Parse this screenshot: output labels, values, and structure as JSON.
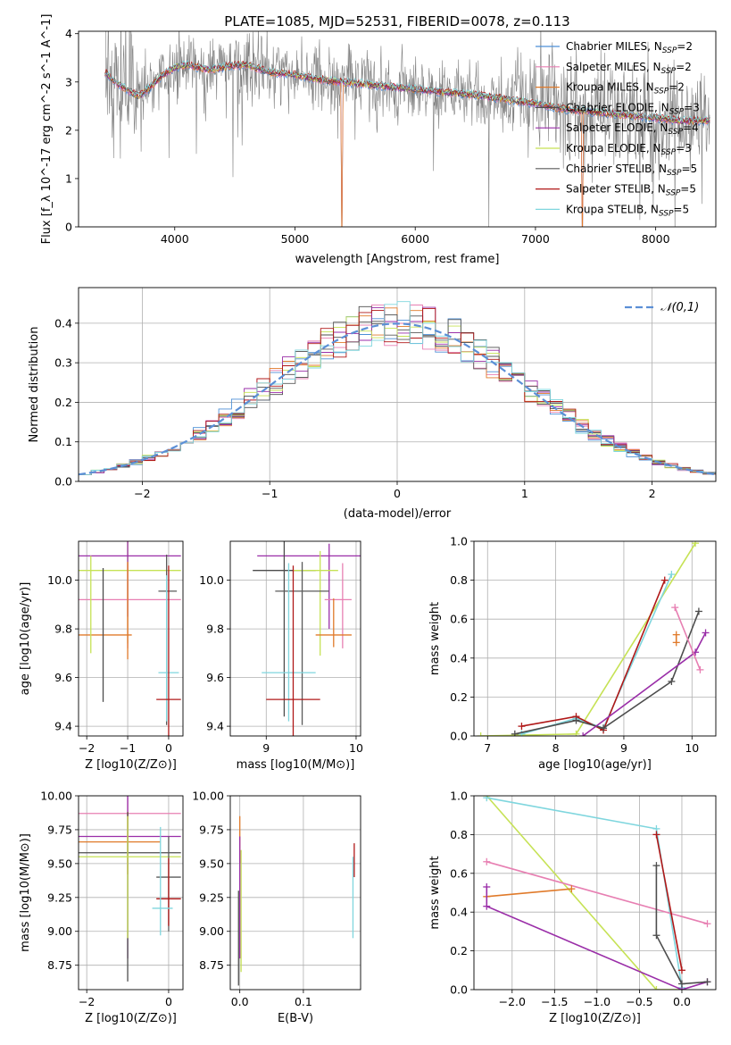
{
  "figure_title": "PLATE=1085, MJD=52531, FIBERID=0078, z=0.113",
  "colors": {
    "Chabrier MILES": "#4c8fd6",
    "Salpeter MILES": "#e77fb2",
    "Kroupa MILES": "#e07a2a",
    "Chabrier ELODIE": "#4d4d4d",
    "Salpeter ELODIE": "#9a2ea8",
    "Kroupa ELODIE": "#c6e255",
    "Chabrier STELIB": "#5a5a5a",
    "Salpeter STELIB": "#b01818",
    "Kroupa STELIB": "#7fd6de",
    "data": "#808080",
    "normal": "#5b8fd6",
    "grid": "#b0b0b0"
  },
  "chart_data": [
    {
      "id": "spectrum",
      "type": "line",
      "title": "PLATE=1085, MJD=52531, FIBERID=0078, z=0.113",
      "xlabel": "wavelength [Angstrom, rest frame]",
      "ylabel": "Flux [f_λ 10^-17 erg cm^-2 s^-1 A^-1]",
      "xlim": [
        3200,
        8500
      ],
      "ylim": [
        0,
        4.05
      ],
      "xticks": [
        4000,
        5000,
        6000,
        7000,
        8000
      ],
      "yticks": [
        0,
        1,
        2,
        3,
        4
      ],
      "grid": false,
      "legend_position": "right",
      "legend": [
        {
          "label": "Chabrier MILES, N",
          "sub": "SSP",
          "val": "=2"
        },
        {
          "label": "Salpeter MILES, N",
          "sub": "SSP",
          "val": "=2"
        },
        {
          "label": "Kroupa MILES, N",
          "sub": "SSP",
          "val": "=2"
        },
        {
          "label": "Chabrier ELODIE, N",
          "sub": "SSP",
          "val": "=3"
        },
        {
          "label": "Salpeter ELODIE, N",
          "sub": "SSP",
          "val": "=4"
        },
        {
          "label": "Kroupa ELODIE, N",
          "sub": "SSP",
          "val": "=3"
        },
        {
          "label": "Chabrier STELIB, N",
          "sub": "SSP",
          "val": "=5"
        },
        {
          "label": "Salpeter STELIB, N",
          "sub": "SSP",
          "val": "=5"
        },
        {
          "label": "Kroupa STELIB, N",
          "sub": "SSP",
          "val": "=5"
        }
      ],
      "model_continuum": {
        "x": [
          3420,
          3500,
          3600,
          3700,
          3800,
          3900,
          4000,
          4100,
          4200,
          4300,
          4400,
          4500,
          4600,
          4800,
          5000,
          5200,
          5400,
          5600,
          5800,
          6000,
          6200,
          6400,
          6600,
          6800,
          7000,
          7200,
          7400,
          7600,
          7800,
          8000,
          8200
        ],
        "y": [
          3.2,
          3.0,
          2.85,
          2.7,
          2.9,
          3.15,
          3.3,
          3.35,
          3.3,
          3.25,
          3.3,
          3.35,
          3.35,
          3.2,
          3.15,
          3.05,
          3.0,
          2.95,
          2.9,
          2.85,
          2.8,
          2.75,
          2.7,
          2.62,
          2.55,
          2.45,
          2.4,
          2.35,
          2.3,
          2.25,
          2.2
        ]
      }
    },
    {
      "id": "residuals",
      "type": "histogram",
      "xlabel": "(data-model)/error",
      "ylabel": "Normed distribution",
      "xlim": [
        -2.5,
        2.5
      ],
      "ylim": [
        0,
        0.49
      ],
      "xticks": [
        -2,
        -1,
        0,
        1,
        2
      ],
      "yticks": [
        0.0,
        0.1,
        0.2,
        0.3,
        0.4
      ],
      "grid": true,
      "legend": [
        {
          "label": "𝒩(0,1)",
          "style": "dashed"
        }
      ],
      "bins": 50,
      "series_names": [
        "Chabrier MILES",
        "Salpeter MILES",
        "Kroupa MILES",
        "Chabrier ELODIE",
        "Salpeter ELODIE",
        "Kroupa ELODIE",
        "Chabrier STELIB",
        "Salpeter STELIB",
        "Kroupa STELIB"
      ]
    },
    {
      "id": "z_age",
      "type": "errorbar",
      "xlabel": "Z [log10(Z/Z⊙)]",
      "ylabel": "age [log10(age/yr)]",
      "xlim": [
        -2.2,
        0.35
      ],
      "ylim": [
        9.36,
        10.16
      ],
      "xticks": [
        -2,
        -1,
        0
      ],
      "yticks": [
        9.4,
        9.6,
        9.8,
        10.0
      ],
      "grid": true,
      "points": [
        {
          "s": "Kroupa ELODIE",
          "x": -1.0,
          "xerr": [
            1.2,
            1.3
          ],
          "y": 10.04,
          "yerr": [
            0.3,
            0.12
          ]
        },
        {
          "s": "Salpeter ELODIE",
          "x": -1.0,
          "xerr": [
            1.2,
            1.3
          ],
          "y": 10.1,
          "yerr": [
            0.25,
            0.1
          ]
        },
        {
          "s": "Salpeter MILES",
          "x": -1.0,
          "xerr": [
            1.2,
            1.3
          ],
          "y": 9.92,
          "yerr": [
            0.2,
            0.15
          ]
        },
        {
          "s": "Kroupa MILES",
          "x": -1.0,
          "xerr": [
            1.2,
            0.1
          ],
          "y": 9.775,
          "yerr": [
            0.1,
            0.3
          ]
        },
        {
          "s": "Chabrier STELIB",
          "x": -0.05,
          "xerr": [
            0.2,
            0.25
          ],
          "y": 9.955,
          "yerr": [
            0.55,
            0.15
          ]
        },
        {
          "s": "Kroupa STELIB",
          "x": -0.05,
          "xerr": [
            0.2,
            0.3
          ],
          "y": 9.62,
          "yerr": [
            0.2,
            0.4
          ]
        },
        {
          "s": "Salpeter STELIB",
          "x": 0.0,
          "xerr": [
            0.3,
            0.3
          ],
          "y": 9.51,
          "yerr": [
            0.15,
            0.55
          ]
        },
        {
          "s": "Kroupa ELODIE",
          "x": -1.9,
          "xerr": [
            0,
            0
          ],
          "y": 9.9,
          "yerr": [
            0.2,
            0.2
          ]
        },
        {
          "s": "Chabrier ELODIE",
          "x": -1.6,
          "xerr": [
            0,
            0
          ],
          "y": 9.8,
          "yerr": [
            0.3,
            0.25
          ]
        }
      ]
    },
    {
      "id": "mass_age",
      "type": "errorbar",
      "xlabel": "mass [log10(M/M⊙)]",
      "ylabel": "",
      "xlim": [
        8.6,
        10.05
      ],
      "ylim": [
        9.36,
        10.16
      ],
      "xticks": [
        9,
        10
      ],
      "yticks": [
        9.4,
        9.6,
        9.8,
        10.0
      ],
      "grid": true,
      "points": [
        {
          "s": "Salpeter ELODIE",
          "x": 9.7,
          "xerr": [
            0.8,
            0.6
          ],
          "y": 10.1,
          "yerr": [
            0.3,
            0.05
          ]
        },
        {
          "s": "Chabrier ELODIE",
          "x": 9.2,
          "xerr": [
            0.35,
            0.35
          ],
          "y": 10.04,
          "yerr": [
            0.6,
            0.12
          ]
        },
        {
          "s": "Kroupa ELODIE",
          "x": 9.6,
          "xerr": [
            0.3,
            0.2
          ],
          "y": 10.04,
          "yerr": [
            0.35,
            0.08
          ]
        },
        {
          "s": "Chabrier STELIB",
          "x": 9.4,
          "xerr": [
            0.3,
            0.3
          ],
          "y": 9.955,
          "yerr": [
            0.55,
            0.12
          ]
        },
        {
          "s": "Salpeter MILES",
          "x": 9.85,
          "xerr": [
            0.2,
            0.1
          ],
          "y": 9.92,
          "yerr": [
            0.2,
            0.15
          ]
        },
        {
          "s": "Kroupa MILES",
          "x": 9.75,
          "xerr": [
            0.2,
            0.2
          ],
          "y": 9.775,
          "yerr": [
            0.05,
            0.15
          ]
        },
        {
          "s": "Kroupa STELIB",
          "x": 9.25,
          "xerr": [
            0.3,
            0.3
          ],
          "y": 9.62,
          "yerr": [
            0.2,
            0.45
          ]
        },
        {
          "s": "Salpeter STELIB",
          "x": 9.3,
          "xerr": [
            0.3,
            0.3
          ],
          "y": 9.51,
          "yerr": [
            0.15,
            0.55
          ]
        }
      ]
    },
    {
      "id": "age_weight",
      "type": "line",
      "xlabel": "age [log10(age/yr)]",
      "ylabel": "mass weight",
      "xlim": [
        6.8,
        10.35
      ],
      "ylim": [
        0,
        1.0
      ],
      "xticks": [
        7,
        8,
        9,
        10
      ],
      "yticks": [
        0.0,
        0.2,
        0.4,
        0.6,
        0.8,
        1.0
      ],
      "grid": true,
      "series": [
        {
          "s": "Kroupa ELODIE",
          "x": [
            6.9,
            8.3,
            10.05
          ],
          "y": [
            0.0,
            0.01,
            0.99
          ]
        },
        {
          "s": "Kroupa STELIB",
          "x": [
            7.5,
            8.3,
            8.7,
            9.7
          ],
          "y": [
            0.01,
            0.09,
            0.04,
            0.83
          ]
        },
        {
          "s": "Salpeter STELIB",
          "x": [
            7.5,
            8.3,
            8.7,
            9.6
          ],
          "y": [
            0.05,
            0.1,
            0.03,
            0.8
          ]
        },
        {
          "s": "Chabrier ELODIE",
          "x": [
            7.4,
            8.3,
            8.7,
            9.7,
            10.1
          ],
          "y": [
            0.01,
            0.08,
            0.04,
            0.28,
            0.64
          ]
        },
        {
          "s": "Salpeter ELODIE",
          "x": [
            8.4,
            10.05,
            10.2
          ],
          "y": [
            0.0,
            0.43,
            0.53
          ]
        },
        {
          "s": "Salpeter MILES",
          "x": [
            9.75,
            10.12
          ],
          "y": [
            0.66,
            0.34
          ]
        },
        {
          "s": "Kroupa MILES",
          "x": [
            9.77,
            9.77
          ],
          "y": [
            0.48,
            0.52
          ]
        }
      ]
    },
    {
      "id": "z_mass",
      "type": "errorbar",
      "xlabel": "Z [log10(Z/Z⊙)]",
      "ylabel": "mass [log10(M/M⊙)]",
      "xlim": [
        -2.2,
        0.35
      ],
      "ylim": [
        8.57,
        10.0
      ],
      "xticks": [
        -2,
        0
      ],
      "yticks": [
        8.75,
        9.0,
        9.25,
        9.5,
        9.75,
        10.0
      ],
      "grid": true,
      "points": [
        {
          "s": "Salpeter MILES",
          "x": -1.0,
          "xerr": [
            1.2,
            1.3
          ],
          "y": 9.87,
          "yerr": [
            0.45,
            0.12
          ]
        },
        {
          "s": "Salpeter ELODIE",
          "x": -1.0,
          "xerr": [
            1.2,
            1.3
          ],
          "y": 9.7,
          "yerr": [
            0.9,
            0.3
          ]
        },
        {
          "s": "Kroupa MILES",
          "x": -1.0,
          "xerr": [
            1.2,
            0.8
          ],
          "y": 9.66,
          "yerr": [
            0.24,
            0.22
          ]
        },
        {
          "s": "Chabrier ELODIE",
          "x": -1.0,
          "xerr": [
            1.2,
            1.3
          ],
          "y": 9.58,
          "yerr": [
            0.95,
            0.3
          ]
        },
        {
          "s": "Kroupa ELODIE",
          "x": -1.0,
          "xerr": [
            1.2,
            1.3
          ],
          "y": 9.55,
          "yerr": [
            0.6,
            0.3
          ]
        },
        {
          "s": "Chabrier STELIB",
          "x": 0.0,
          "xerr": [
            0.3,
            0.3
          ],
          "y": 9.4,
          "yerr": [
            0.4,
            0.3
          ]
        },
        {
          "s": "Salpeter STELIB",
          "x": 0.0,
          "xerr": [
            0.3,
            0.3
          ],
          "y": 9.24,
          "yerr": [
            0.2,
            0.3
          ]
        },
        {
          "s": "Kroupa STELIB",
          "x": -0.2,
          "xerr": [
            0.2,
            0.3
          ],
          "y": 9.17,
          "yerr": [
            0.2,
            0.6
          ]
        }
      ]
    },
    {
      "id": "ebv_mass",
      "type": "errorbar",
      "xlabel": "E(B-V)",
      "ylabel": "",
      "xlim": [
        -0.015,
        0.19
      ],
      "ylim": [
        8.57,
        10.0
      ],
      "xticks": [
        0.0,
        0.1
      ],
      "yticks": [
        8.75,
        9.0,
        9.25,
        9.5,
        9.75,
        10.0
      ],
      "grid": true,
      "points": [
        {
          "s": "Kroupa MILES",
          "x": 0.0,
          "xerr": [
            0,
            0
          ],
          "y": 9.7,
          "yerr": [
            0.2,
            0.15
          ]
        },
        {
          "s": "Salpeter ELODIE",
          "x": 0.0,
          "xerr": [
            0,
            0
          ],
          "y": 9.3,
          "yerr": [
            0.5,
            0.4
          ]
        },
        {
          "s": "Kroupa ELODIE",
          "x": 0.002,
          "xerr": [
            0,
            0
          ],
          "y": 9.3,
          "yerr": [
            0.6,
            0.3
          ]
        },
        {
          "s": "Chabrier ELODIE",
          "x": -0.002,
          "xerr": [
            0,
            0
          ],
          "y": 9.0,
          "yerr": [
            0.4,
            0.3
          ]
        },
        {
          "s": "Kroupa STELIB",
          "x": 0.178,
          "xerr": [
            0,
            0
          ],
          "y": 9.25,
          "yerr": [
            0.3,
            0.3
          ]
        },
        {
          "s": "Salpeter STELIB",
          "x": 0.18,
          "xerr": [
            0,
            0
          ],
          "y": 9.5,
          "yerr": [
            0.1,
            0.15
          ]
        }
      ]
    },
    {
      "id": "z_weight",
      "type": "line",
      "xlabel": "Z [log10(Z/Z⊙)]",
      "ylabel": "mass weight",
      "xlim": [
        -2.45,
        0.4
      ],
      "ylim": [
        0,
        1.0
      ],
      "xticks": [
        -2.0,
        -1.5,
        -1.0,
        -0.5,
        0.0
      ],
      "yticks": [
        0.0,
        0.2,
        0.4,
        0.6,
        0.8,
        1.0
      ],
      "grid": true,
      "series": [
        {
          "s": "Kroupa ELODIE",
          "x": [
            -2.3,
            -0.3,
            0.0
          ],
          "y": [
            1.0,
            0.0,
            0.0
          ]
        },
        {
          "s": "Kroupa STELIB",
          "x": [
            -2.3,
            -0.3,
            0.0
          ],
          "y": [
            0.99,
            0.83,
            0.01
          ]
        },
        {
          "s": "Salpeter MILES",
          "x": [
            -2.3,
            0.3
          ],
          "y": [
            0.66,
            0.34
          ]
        },
        {
          "s": "Kroupa MILES",
          "x": [
            -2.3,
            -1.3
          ],
          "y": [
            0.48,
            0.52
          ]
        },
        {
          "s": "Salpeter ELODIE",
          "x": [
            -2.3,
            -2.3,
            0.0,
            0.3
          ],
          "y": [
            0.53,
            0.43,
            0.0,
            0.04
          ]
        },
        {
          "s": "Salpeter STELIB",
          "x": [
            -0.3,
            0.0
          ],
          "y": [
            0.8,
            0.1
          ]
        },
        {
          "s": "Chabrier ELODIE",
          "x": [
            -0.3,
            -0.3,
            0.0,
            0.3
          ],
          "y": [
            0.64,
            0.28,
            0.03,
            0.04
          ]
        }
      ]
    }
  ]
}
